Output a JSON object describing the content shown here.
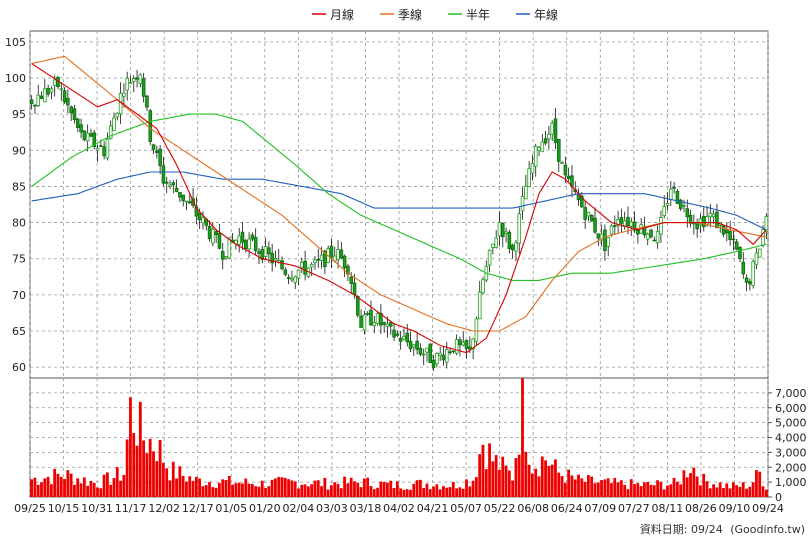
{
  "chart_data": {
    "type": "candlestick",
    "legend": [
      {
        "label": "月線",
        "color": "#d40000"
      },
      {
        "label": "季線",
        "color": "#e07020"
      },
      {
        "label": "半年",
        "color": "#22c022"
      },
      {
        "label": "年線",
        "color": "#2060c0"
      }
    ],
    "price_axis": {
      "ylim": [
        58.5,
        106.5
      ],
      "ticks": [
        60,
        65,
        70,
        75,
        80,
        85,
        90,
        95,
        100,
        105
      ],
      "tick_labels": [
        "60",
        "65",
        "70",
        "75",
        "80",
        "85",
        "90",
        "95",
        "100",
        "105"
      ]
    },
    "volume_axis": {
      "ylim": [
        0,
        8000
      ],
      "ticks": [
        0,
        1000,
        2000,
        3000,
        4000,
        5000,
        6000,
        7000
      ],
      "tick_labels": [
        "0",
        "1,000",
        "2,000",
        "3,000",
        "4,000",
        "5,000",
        "6,000",
        "7,000"
      ]
    },
    "x_tick_labels": [
      "09/25",
      "10/15",
      "10/31",
      "11/17",
      "12/02",
      "12/17",
      "01/05",
      "01/20",
      "02/04",
      "03/03",
      "03/18",
      "04/02",
      "04/21",
      "05/07",
      "05/22",
      "06/08",
      "06/24",
      "07/09",
      "07/27",
      "08/11",
      "08/26",
      "09/10",
      "09/24"
    ],
    "grid": true,
    "legend_position": "top-center",
    "up_color": "#1f9e1f",
    "down_color": "#1f9e1f",
    "volume_color": "#ee0000",
    "price_anchors": [
      [
        0,
        97
      ],
      [
        8,
        99
      ],
      [
        15,
        92
      ],
      [
        22,
        90
      ],
      [
        28,
        99
      ],
      [
        33,
        101
      ],
      [
        36,
        92
      ],
      [
        40,
        86
      ],
      [
        45,
        84
      ],
      [
        52,
        80
      ],
      [
        58,
        76
      ],
      [
        63,
        78
      ],
      [
        70,
        76
      ],
      [
        78,
        73
      ],
      [
        86,
        74
      ],
      [
        92,
        76
      ],
      [
        96,
        74
      ],
      [
        100,
        66
      ],
      [
        104,
        67
      ],
      [
        108,
        65
      ],
      [
        116,
        63
      ],
      [
        122,
        61
      ],
      [
        128,
        63
      ],
      [
        133,
        62
      ],
      [
        137,
        72
      ],
      [
        142,
        80
      ],
      [
        146,
        76
      ],
      [
        150,
        85
      ],
      [
        154,
        91
      ],
      [
        158,
        93
      ],
      [
        162,
        86
      ],
      [
        166,
        83
      ],
      [
        170,
        80
      ],
      [
        174,
        77
      ],
      [
        178,
        81
      ],
      [
        182,
        80
      ],
      [
        186,
        79
      ],
      [
        190,
        78
      ],
      [
        194,
        85
      ],
      [
        198,
        82
      ],
      [
        202,
        80
      ],
      [
        206,
        81
      ],
      [
        210,
        79
      ],
      [
        214,
        76
      ],
      [
        217,
        71
      ],
      [
        220,
        75
      ],
      [
        223,
        81
      ]
    ],
    "ma_month": [
      [
        0,
        102
      ],
      [
        10,
        99
      ],
      [
        20,
        96
      ],
      [
        26,
        97
      ],
      [
        32,
        95
      ],
      [
        38,
        93
      ],
      [
        44,
        88
      ],
      [
        50,
        82
      ],
      [
        56,
        79
      ],
      [
        62,
        77
      ],
      [
        70,
        75
      ],
      [
        80,
        74
      ],
      [
        90,
        72
      ],
      [
        98,
        70
      ],
      [
        104,
        68
      ],
      [
        110,
        66
      ],
      [
        116,
        65
      ],
      [
        124,
        63
      ],
      [
        132,
        62
      ],
      [
        138,
        64
      ],
      [
        144,
        70
      ],
      [
        150,
        78
      ],
      [
        154,
        84
      ],
      [
        158,
        87
      ],
      [
        162,
        86
      ],
      [
        168,
        83
      ],
      [
        176,
        80
      ],
      [
        184,
        79
      ],
      [
        192,
        80
      ],
      [
        200,
        80
      ],
      [
        208,
        80
      ],
      [
        214,
        79
      ],
      [
        219,
        77
      ],
      [
        223,
        79
      ]
    ],
    "ma_quarter": [
      [
        0,
        102
      ],
      [
        10,
        103
      ],
      [
        18,
        100
      ],
      [
        26,
        97
      ],
      [
        36,
        93
      ],
      [
        46,
        90
      ],
      [
        56,
        87
      ],
      [
        66,
        84
      ],
      [
        76,
        81
      ],
      [
        86,
        77
      ],
      [
        96,
        73
      ],
      [
        106,
        70
      ],
      [
        116,
        68
      ],
      [
        126,
        66
      ],
      [
        134,
        65
      ],
      [
        142,
        65
      ],
      [
        150,
        67
      ],
      [
        158,
        72
      ],
      [
        166,
        76
      ],
      [
        174,
        78
      ],
      [
        182,
        79
      ],
      [
        192,
        80
      ],
      [
        202,
        80
      ],
      [
        212,
        79
      ],
      [
        223,
        78
      ]
    ],
    "ma_half": [
      [
        0,
        85
      ],
      [
        12,
        89
      ],
      [
        24,
        92
      ],
      [
        36,
        94
      ],
      [
        48,
        95
      ],
      [
        56,
        95
      ],
      [
        64,
        94
      ],
      [
        72,
        91
      ],
      [
        80,
        88
      ],
      [
        90,
        84
      ],
      [
        100,
        81
      ],
      [
        110,
        79
      ],
      [
        120,
        77
      ],
      [
        130,
        75
      ],
      [
        138,
        73
      ],
      [
        146,
        72
      ],
      [
        154,
        72
      ],
      [
        164,
        73
      ],
      [
        176,
        73
      ],
      [
        190,
        74
      ],
      [
        204,
        75
      ],
      [
        214,
        76
      ],
      [
        223,
        77
      ]
    ],
    "ma_year": [
      [
        0,
        83
      ],
      [
        14,
        84
      ],
      [
        26,
        86
      ],
      [
        36,
        87
      ],
      [
        46,
        87
      ],
      [
        58,
        86
      ],
      [
        70,
        86
      ],
      [
        82,
        85
      ],
      [
        94,
        84
      ],
      [
        104,
        82
      ],
      [
        114,
        82
      ],
      [
        126,
        82
      ],
      [
        136,
        82
      ],
      [
        146,
        82
      ],
      [
        156,
        83
      ],
      [
        166,
        84
      ],
      [
        176,
        84
      ],
      [
        186,
        84
      ],
      [
        196,
        83
      ],
      [
        206,
        82
      ],
      [
        214,
        81
      ],
      [
        223,
        79
      ]
    ],
    "volume_anchors": [
      [
        0,
        1200
      ],
      [
        10,
        1500
      ],
      [
        20,
        900
      ],
      [
        28,
        1600
      ],
      [
        30,
        5800
      ],
      [
        34,
        4000
      ],
      [
        38,
        3500
      ],
      [
        42,
        1800
      ],
      [
        50,
        1100
      ],
      [
        60,
        1000
      ],
      [
        70,
        900
      ],
      [
        80,
        1000
      ],
      [
        90,
        900
      ],
      [
        100,
        1000
      ],
      [
        110,
        800
      ],
      [
        120,
        900
      ],
      [
        128,
        800
      ],
      [
        134,
        1200
      ],
      [
        137,
        3800
      ],
      [
        140,
        2500
      ],
      [
        146,
        1400
      ],
      [
        149,
        6200
      ],
      [
        152,
        2200
      ],
      [
        156,
        2600
      ],
      [
        160,
        1600
      ],
      [
        166,
        1100
      ],
      [
        176,
        900
      ],
      [
        186,
        800
      ],
      [
        196,
        900
      ],
      [
        200,
        2200
      ],
      [
        204,
        1100
      ],
      [
        212,
        700
      ],
      [
        218,
        800
      ],
      [
        221,
        1600
      ],
      [
        223,
        700
      ]
    ]
  },
  "footer": {
    "label": "資料日期: 09/24",
    "source": "(Goodinfo.tw)"
  }
}
